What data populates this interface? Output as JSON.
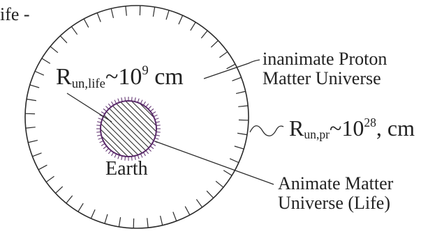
{
  "fragment": {
    "text": "ife -"
  },
  "inner_radius": {
    "symbol": "R",
    "subscript": "un,life",
    "approx": "~",
    "base": "10",
    "exponent": "9",
    "unit": " cm"
  },
  "outer_radius": {
    "symbol": "R",
    "subscript": "un,pr",
    "approx": "~",
    "base": "10",
    "exponent": "28",
    "unit": ", cm"
  },
  "earth": {
    "label": "Earth"
  },
  "proton_universe": {
    "line1": "inanimate Proton",
    "line2": "Matter Universe"
  },
  "animate_universe": {
    "line1": "Animate Matter",
    "line2": "Universe (Life)"
  },
  "colors": {
    "line": "#2a2a2a",
    "earth_outline": "#5a2a6a",
    "hatch": "#222222"
  }
}
